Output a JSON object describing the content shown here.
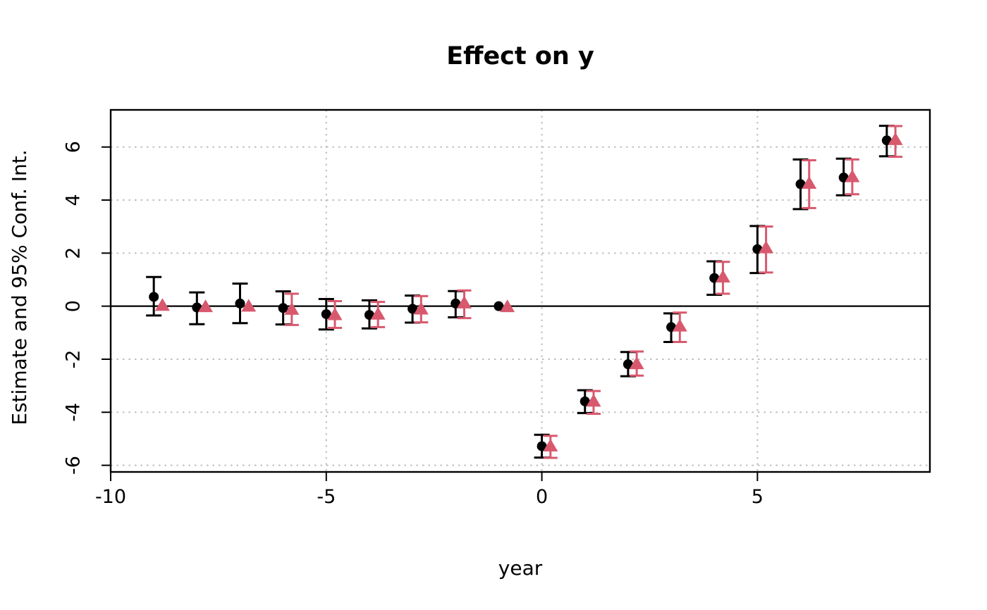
{
  "chart_data": {
    "type": "scatter",
    "title": "Effect on y",
    "xlabel": "year",
    "ylabel": "Estimate and 95% Conf. Int.",
    "xlim": [
      -10.0,
      9.0
    ],
    "ylim": [
      -6.25,
      7.4
    ],
    "x_ticks": [
      -10,
      -5,
      0,
      5
    ],
    "y_ticks": [
      -6,
      -4,
      -2,
      0,
      2,
      4,
      6
    ],
    "grid": true,
    "grid_style": "dotted",
    "grid_color": "#bfbfbf",
    "zero_line": true,
    "zero_line_color": "#000000",
    "legend": "none",
    "series": [
      {
        "name": "estimate-circles",
        "marker": "circle",
        "color": "#000000",
        "x_offset": 0,
        "points": [
          {
            "x": -9,
            "est": 0.35,
            "lo": -0.35,
            "hi": 1.1
          },
          {
            "x": -8,
            "est": -0.05,
            "lo": -0.68,
            "hi": 0.52
          },
          {
            "x": -7,
            "est": 0.1,
            "lo": -0.64,
            "hi": 0.85
          },
          {
            "x": -6,
            "est": -0.07,
            "lo": -0.69,
            "hi": 0.56
          },
          {
            "x": -5,
            "est": -0.3,
            "lo": -0.88,
            "hi": 0.27
          },
          {
            "x": -4,
            "est": -0.33,
            "lo": -0.84,
            "hi": 0.22
          },
          {
            "x": -3,
            "est": -0.1,
            "lo": -0.62,
            "hi": 0.4
          },
          {
            "x": -2,
            "est": 0.1,
            "lo": -0.42,
            "hi": 0.57
          },
          {
            "x": -1,
            "est": 0.0,
            "lo": null,
            "hi": null
          },
          {
            "x": 0,
            "est": -5.28,
            "lo": -5.71,
            "hi": -4.85
          },
          {
            "x": 1,
            "est": -3.59,
            "lo": -4.03,
            "hi": -3.17
          },
          {
            "x": 2,
            "est": -2.19,
            "lo": -2.64,
            "hi": -1.73
          },
          {
            "x": 3,
            "est": -0.79,
            "lo": -1.35,
            "hi": -0.27
          },
          {
            "x": 4,
            "est": 1.06,
            "lo": 0.43,
            "hi": 1.69
          },
          {
            "x": 5,
            "est": 2.15,
            "lo": 1.25,
            "hi": 3.02
          },
          {
            "x": 6,
            "est": 4.6,
            "lo": 3.66,
            "hi": 5.53
          },
          {
            "x": 7,
            "est": 4.85,
            "lo": 4.18,
            "hi": 5.56
          },
          {
            "x": 8,
            "est": 6.25,
            "lo": 5.65,
            "hi": 6.8
          }
        ]
      },
      {
        "name": "estimate-triangles",
        "marker": "triangle",
        "color": "#d8596e",
        "x_offset": 0.2,
        "points": [
          {
            "x": -9,
            "est": 0.05,
            "lo": null,
            "hi": null
          },
          {
            "x": -8,
            "est": 0.0,
            "lo": null,
            "hi": null
          },
          {
            "x": -7,
            "est": 0.02,
            "lo": null,
            "hi": null
          },
          {
            "x": -6,
            "est": -0.1,
            "lo": -0.71,
            "hi": 0.47
          },
          {
            "x": -5,
            "est": -0.3,
            "lo": -0.82,
            "hi": 0.19
          },
          {
            "x": -4,
            "est": -0.28,
            "lo": -0.79,
            "hi": 0.16
          },
          {
            "x": -3,
            "est": -0.09,
            "lo": -0.61,
            "hi": 0.38
          },
          {
            "x": -2,
            "est": 0.14,
            "lo": -0.45,
            "hi": 0.59
          },
          {
            "x": -1,
            "est": 0.0,
            "lo": null,
            "hi": null
          },
          {
            "x": 0,
            "est": -5.25,
            "lo": -5.72,
            "hi": -4.89
          },
          {
            "x": 1,
            "est": -3.56,
            "lo": -4.06,
            "hi": -3.2
          },
          {
            "x": 2,
            "est": -2.15,
            "lo": -2.62,
            "hi": -1.71
          },
          {
            "x": 3,
            "est": -0.73,
            "lo": -1.35,
            "hi": -0.24
          },
          {
            "x": 4,
            "est": 1.12,
            "lo": 0.47,
            "hi": 1.67
          },
          {
            "x": 5,
            "est": 2.22,
            "lo": 1.27,
            "hi": 3.0
          },
          {
            "x": 6,
            "est": 4.65,
            "lo": 3.7,
            "hi": 5.5
          },
          {
            "x": 7,
            "est": 4.9,
            "lo": 4.22,
            "hi": 5.53
          },
          {
            "x": 8,
            "est": 6.3,
            "lo": 5.63,
            "hi": 6.79
          }
        ]
      }
    ]
  }
}
